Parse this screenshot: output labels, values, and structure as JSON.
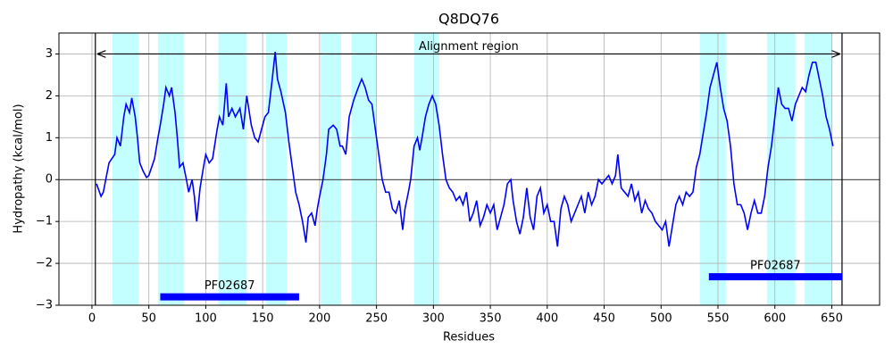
{
  "chart_data": {
    "type": "line",
    "title": "Q8DQ76",
    "x_label": "Residues",
    "y_label": "Hydropathy (kcal/mol)",
    "color": "#0000ff",
    "x": [
      4,
      8,
      10,
      15,
      20,
      22,
      25,
      28,
      30,
      33,
      35,
      38,
      40,
      42,
      45,
      48,
      50,
      55,
      58,
      60,
      63,
      65,
      68,
      70,
      73,
      75,
      77,
      80,
      83,
      85,
      88,
      90,
      92,
      95,
      98,
      100,
      103,
      106,
      110,
      112,
      115,
      118,
      120,
      123,
      126,
      130,
      133,
      136,
      140,
      143,
      146,
      150,
      152,
      155,
      158,
      161,
      163,
      166,
      170,
      173,
      176,
      179,
      182,
      185,
      188,
      190,
      193,
      196,
      198,
      200,
      203,
      206,
      208,
      212,
      215,
      218,
      220,
      223,
      226,
      230,
      234,
      237,
      240,
      243,
      246,
      249,
      252,
      255,
      258,
      261,
      264,
      267,
      270,
      273,
      275,
      278,
      280,
      283,
      286,
      288,
      290,
      293,
      296,
      299,
      302,
      305,
      308,
      311,
      314,
      317,
      320,
      323,
      326,
      329,
      332,
      335,
      338,
      341,
      344,
      347,
      350,
      353,
      356,
      359,
      362,
      365,
      368,
      370,
      373,
      376,
      379,
      382,
      385,
      388,
      391,
      394,
      397,
      400,
      403,
      406,
      409,
      412,
      415,
      418,
      421,
      424,
      427,
      430,
      433,
      436,
      439,
      442,
      445,
      448,
      451,
      454,
      457,
      460,
      462,
      465,
      468,
      471,
      474,
      477,
      480,
      483,
      486,
      489,
      492,
      495,
      498,
      501,
      504,
      507,
      510,
      513,
      516,
      519,
      522,
      525,
      528,
      531,
      534,
      537,
      540,
      543,
      546,
      549,
      552,
      555,
      558,
      561,
      564,
      567,
      570,
      573,
      576,
      579,
      582,
      585,
      588,
      591,
      594,
      597,
      600,
      603,
      606,
      609,
      612,
      615,
      618,
      621,
      624,
      627,
      630,
      633,
      636,
      639,
      642,
      645,
      648,
      651
    ],
    "values": [
      -0.1,
      -0.4,
      -0.3,
      0.4,
      0.6,
      1.0,
      0.8,
      1.5,
      1.8,
      1.6,
      1.95,
      1.5,
      1.0,
      0.4,
      0.2,
      0.05,
      0.1,
      0.5,
      1.0,
      1.3,
      1.8,
      2.2,
      2.0,
      2.2,
      1.6,
      1.0,
      0.3,
      0.4,
      0.0,
      -0.3,
      0.0,
      -0.4,
      -1.0,
      -0.2,
      0.3,
      0.6,
      0.4,
      0.5,
      1.2,
      1.5,
      1.3,
      2.3,
      1.5,
      1.7,
      1.5,
      1.7,
      1.2,
      2.0,
      1.3,
      1.0,
      0.9,
      1.3,
      1.5,
      1.6,
      2.3,
      3.05,
      2.4,
      2.1,
      1.6,
      0.9,
      0.3,
      -0.3,
      -0.6,
      -1.0,
      -1.5,
      -0.9,
      -0.8,
      -1.1,
      -0.7,
      -0.4,
      0.0,
      0.6,
      1.2,
      1.3,
      1.2,
      0.8,
      0.8,
      0.6,
      1.5,
      1.9,
      2.2,
      2.4,
      2.2,
      1.9,
      1.8,
      1.2,
      0.6,
      0.0,
      -0.3,
      -0.3,
      -0.7,
      -0.8,
      -0.5,
      -1.2,
      -0.7,
      -0.3,
      0.0,
      0.8,
      1.0,
      0.7,
      1.0,
      1.5,
      1.8,
      2.0,
      1.8,
      1.3,
      0.6,
      0.0,
      -0.2,
      -0.3,
      -0.5,
      -0.4,
      -0.6,
      -0.3,
      -1.0,
      -0.8,
      -0.5,
      -1.1,
      -0.9,
      -0.6,
      -0.8,
      -0.6,
      -1.2,
      -0.9,
      -0.6,
      -0.1,
      0.0,
      -0.5,
      -1.0,
      -1.3,
      -0.9,
      -0.2,
      -0.9,
      -1.2,
      -0.4,
      -0.2,
      -0.8,
      -0.6,
      -1.0,
      -1.0,
      -1.6,
      -0.7,
      -0.4,
      -0.6,
      -1.0,
      -0.8,
      -0.6,
      -0.4,
      -0.8,
      -0.3,
      -0.6,
      -0.4,
      0.0,
      -0.1,
      0.0,
      0.1,
      -0.1,
      0.1,
      0.6,
      -0.2,
      -0.3,
      -0.4,
      -0.1,
      -0.5,
      -0.3,
      -0.8,
      -0.5,
      -0.7,
      -0.8,
      -1.0,
      -1.1,
      -1.2,
      -1.0,
      -1.6,
      -1.1,
      -0.6,
      -0.4,
      -0.6,
      -0.3,
      -0.4,
      -0.3,
      0.3,
      0.6,
      1.1,
      1.6,
      2.2,
      2.5,
      2.8,
      2.2,
      1.7,
      1.4,
      0.8,
      -0.1,
      -0.6,
      -0.6,
      -0.8,
      -1.2,
      -0.8,
      -0.5,
      -0.8,
      -0.8,
      -0.4,
      0.3,
      0.8,
      1.5,
      2.2,
      1.8,
      1.7,
      1.7,
      1.4,
      1.8,
      2.0,
      2.2,
      2.1,
      2.5,
      2.8,
      2.8,
      2.4,
      2.0,
      1.5,
      1.2,
      0.8
    ],
    "xlim": [
      -29,
      692
    ],
    "ylim": [
      -3,
      3.5
    ],
    "xticks": [
      0,
      50,
      100,
      150,
      200,
      250,
      300,
      350,
      400,
      450,
      500,
      550,
      600,
      650
    ],
    "yticks": [
      {
        "value": -3,
        "label": "−3"
      },
      {
        "value": -2,
        "label": "−2"
      },
      {
        "value": -1,
        "label": "−1"
      },
      0,
      1,
      2,
      3
    ],
    "grid": true,
    "hline": 0,
    "shade_color": "#c4ffff",
    "shaded_regions": [
      [
        18,
        41
      ],
      [
        58,
        81
      ],
      [
        111,
        136
      ],
      [
        153,
        171
      ],
      [
        201,
        219
      ],
      [
        228,
        250
      ],
      [
        283,
        305
      ],
      [
        534,
        557
      ],
      [
        593,
        618
      ],
      [
        626,
        650
      ]
    ],
    "alignment": {
      "label": "Alignment region",
      "start": 3,
      "end": 659,
      "y": 3
    },
    "domains": [
      {
        "label": "PF02687",
        "start": 60,
        "end": 182,
        "y": -2.8
      },
      {
        "label": "PF02687",
        "start": 542,
        "end": 659,
        "y": -2.32
      }
    ]
  }
}
